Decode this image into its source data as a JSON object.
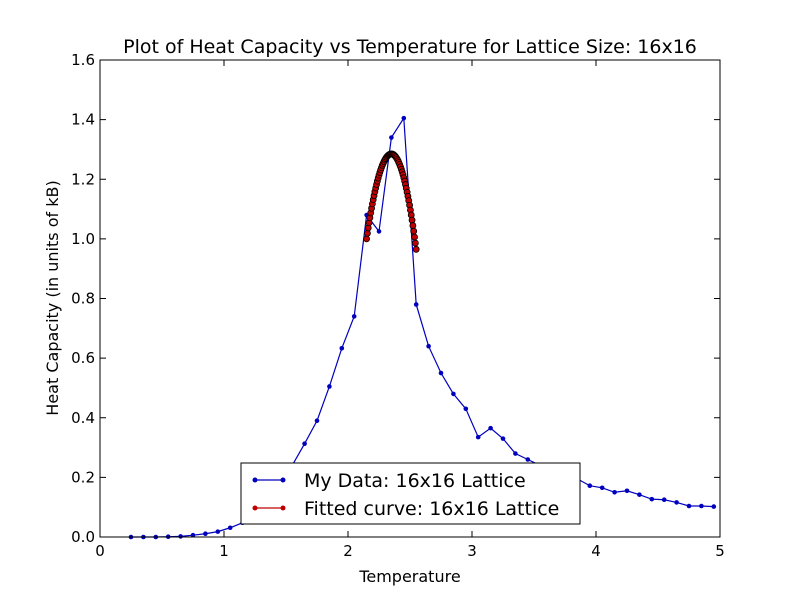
{
  "chart_data": {
    "type": "line",
    "title": "Plot of Heat Capacity vs Temperature for Lattice Size: 16x16",
    "xlabel": "Temperature",
    "ylabel": "Heat Capacity (in units of kB)",
    "xlim": [
      0,
      5
    ],
    "ylim": [
      0,
      1.6
    ],
    "xticks": [
      "0",
      "1",
      "2",
      "3",
      "4",
      "5"
    ],
    "yticks": [
      "0.0",
      "0.2",
      "0.4",
      "0.6",
      "0.8",
      "1.0",
      "1.2",
      "1.4",
      "1.6"
    ],
    "grid": false,
    "legend_position": "lower-center",
    "series": [
      {
        "name": "My Data: 16x16 Lattice",
        "color": "#0000bf",
        "x": [
          0.25,
          0.35,
          0.45,
          0.55,
          0.65,
          0.75,
          0.85,
          0.95,
          1.05,
          1.15,
          1.25,
          1.35,
          1.45,
          1.55,
          1.65,
          1.75,
          1.85,
          1.95,
          2.05,
          2.15,
          2.25,
          2.35,
          2.45,
          2.55,
          2.65,
          2.75,
          2.85,
          2.95,
          3.05,
          3.15,
          3.25,
          3.35,
          3.45,
          3.55,
          3.65,
          3.75,
          3.85,
          3.95,
          4.05,
          4.15,
          4.25,
          4.35,
          4.45,
          4.55,
          4.65,
          4.75,
          4.85,
          4.95
        ],
        "y": [
          0.0,
          0.0,
          0.0,
          0.001,
          0.002,
          0.006,
          0.011,
          0.018,
          0.031,
          0.048,
          0.08,
          0.12,
          0.17,
          0.24,
          0.313,
          0.39,
          0.505,
          0.633,
          0.74,
          1.08,
          1.025,
          1.34,
          1.405,
          0.78,
          0.64,
          0.55,
          0.48,
          0.43,
          0.335,
          0.365,
          0.33,
          0.28,
          0.26,
          0.24,
          0.23,
          0.215,
          0.195,
          0.172,
          0.165,
          0.15,
          0.155,
          0.142,
          0.127,
          0.125,
          0.116,
          0.104,
          0.104,
          0.102
        ]
      },
      {
        "name": "Fitted curve: 16x16 Lattice",
        "color": "#bf0000",
        "peak_x": 2.35,
        "peak_y": 1.285,
        "x_range": [
          2.15,
          2.55
        ],
        "y_start": 1.0,
        "y_end": 0.965,
        "samples": 60
      }
    ]
  }
}
